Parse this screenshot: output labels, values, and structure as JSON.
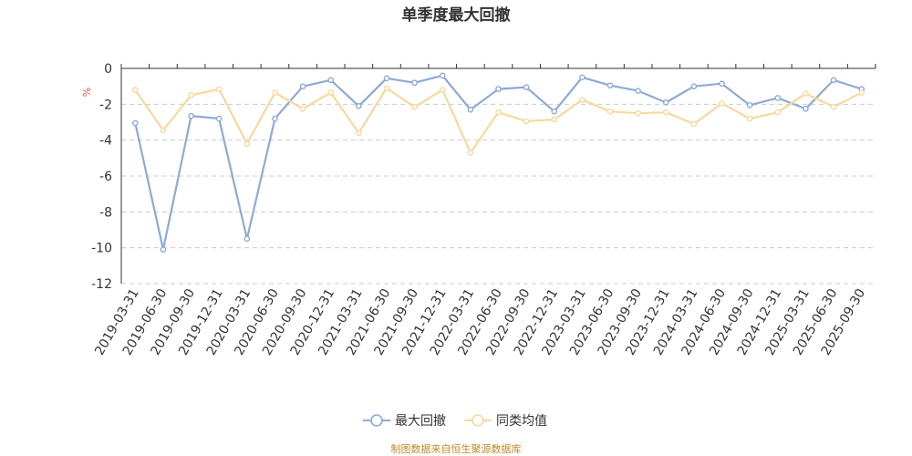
{
  "chart_data": {
    "type": "line",
    "title": "单季度最大回撤",
    "ylabel": "%",
    "xlabel": "",
    "ylim": [
      -12,
      0
    ],
    "yticks": [
      0,
      -2,
      -4,
      -6,
      -8,
      -10,
      -12
    ],
    "grid": true,
    "legend_position": "bottom-center",
    "categories": [
      "2019-03-31",
      "2019-06-30",
      "2019-09-30",
      "2019-12-31",
      "2020-03-31",
      "2020-06-30",
      "2020-09-30",
      "2020-12-31",
      "2021-03-31",
      "2021-06-30",
      "2021-09-30",
      "2021-12-31",
      "2022-03-31",
      "2022-06-30",
      "2022-09-30",
      "2022-12-31",
      "2023-03-31",
      "2023-06-30",
      "2023-09-30",
      "2023-12-31",
      "2024-03-31",
      "2024-06-30",
      "2024-09-30",
      "2024-12-31",
      "2025-03-31",
      "2025-06-30",
      "2025-09-30"
    ],
    "series": [
      {
        "name": "最大回撤",
        "color": "#8eaad6",
        "values": [
          -3.05,
          -10.1,
          -2.65,
          -2.8,
          -9.5,
          -2.8,
          -1.0,
          -0.65,
          -2.1,
          -0.55,
          -0.8,
          -0.4,
          -2.3,
          -1.15,
          -1.05,
          -2.4,
          -0.5,
          -0.95,
          -1.25,
          -1.9,
          -1.0,
          -0.85,
          -2.05,
          -1.65,
          -2.25,
          -0.65,
          -1.15
        ]
      },
      {
        "name": "同类均值",
        "color": "#f8d89e",
        "values": [
          -1.2,
          -3.45,
          -1.5,
          -1.15,
          -4.2,
          -1.35,
          -2.25,
          -1.35,
          -3.6,
          -1.1,
          -2.15,
          -1.2,
          -4.7,
          -2.45,
          -2.95,
          -2.85,
          -1.75,
          -2.4,
          -2.5,
          -2.45,
          -3.1,
          -1.95,
          -2.8,
          -2.45,
          -1.4,
          -2.15,
          -1.35
        ]
      }
    ]
  },
  "footer": {
    "source": "制图数据来自恒生聚源数据库"
  }
}
